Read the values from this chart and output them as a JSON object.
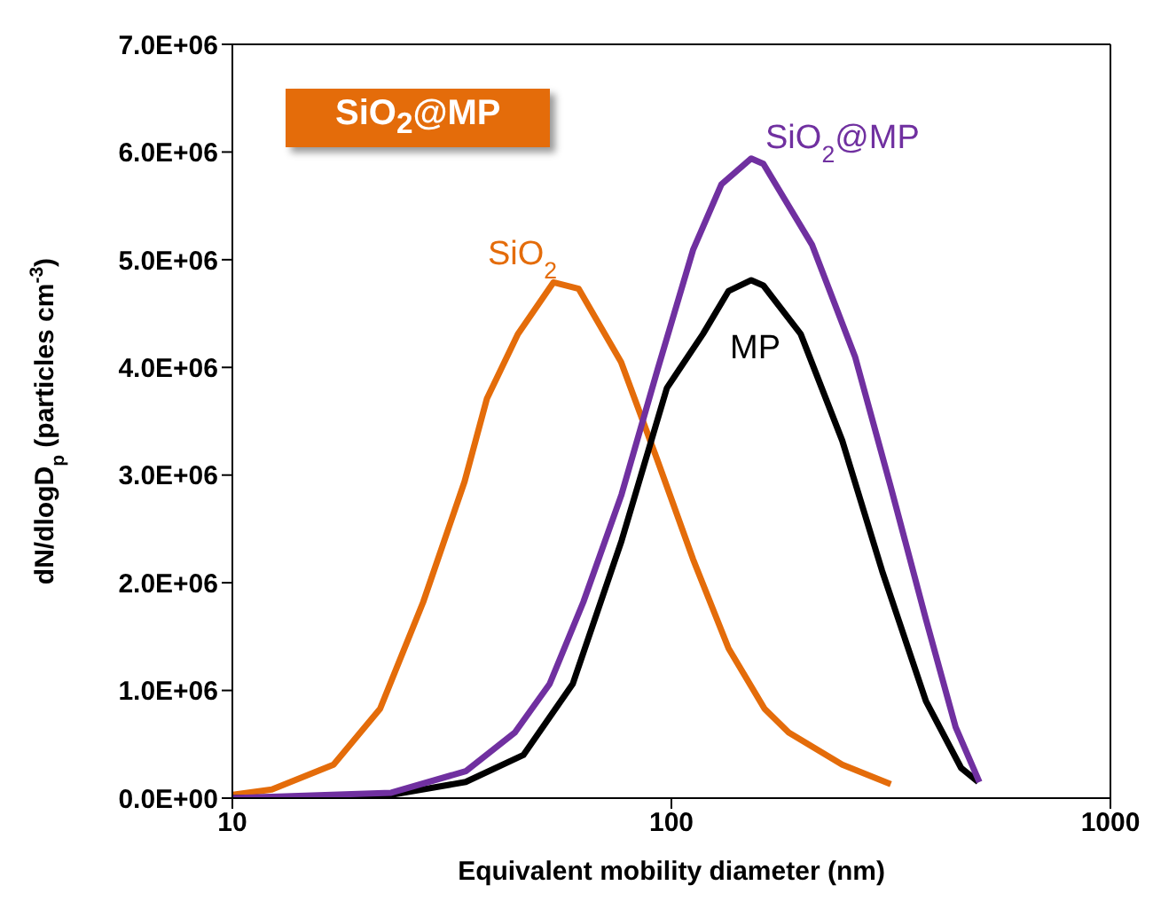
{
  "chart_data": {
    "type": "line",
    "title": "SiO$_{2}$@MP",
    "xlabel": "Equivalent mobility diameter (nm)",
    "ylabel": "dN/dlogD$_{p}$ (particles cm$^{-3}$)",
    "log": "x",
    "marker": "none",
    "line_style": "solid",
    "xlim": [
      10,
      1000
    ],
    "xticks": [
      10,
      100,
      1000
    ],
    "ylim": [
      0,
      7000000
    ],
    "yticks": [
      {
        "value": 0,
        "label": "0.0E+00"
      },
      {
        "value": 1000000,
        "label": "1.0E+06"
      },
      {
        "value": 2000000,
        "label": "2.0E+06"
      },
      {
        "value": 3000000,
        "label": "3.0E+06"
      },
      {
        "value": 4000000,
        "label": "4.0E+06"
      },
      {
        "value": 5000000,
        "label": "5.0E+06"
      },
      {
        "value": 6000000,
        "label": "6.0E+06"
      },
      {
        "value": 7000000,
        "label": "7.0E+06"
      }
    ],
    "series": [
      {
        "name": "SiO$_{2}$",
        "color": "#e46c0a",
        "x": [
          10,
          12.3,
          17,
          21.7,
          27.2,
          33.8,
          38,
          44.7,
          53.9,
          61.5,
          76.8,
          92.7,
          112,
          135,
          163,
          185,
          245,
          316
        ],
        "values": [
          30000,
          80000,
          310000,
          830000,
          1820000,
          2940000,
          3710000,
          4310000,
          4790000,
          4730000,
          4050000,
          3150000,
          2220000,
          1390000,
          830000,
          610000,
          310000,
          130000
        ]
      },
      {
        "name": "MP",
        "color": "#000000",
        "x": [
          10,
          23,
          34,
          46,
          59.6,
          77,
          97.7,
          118,
          135,
          152,
          162,
          197,
          245,
          302,
          380,
          457,
          500
        ],
        "values": [
          0,
          30000,
          150000,
          400000,
          1060000,
          2390000,
          3810000,
          4310000,
          4710000,
          4810000,
          4760000,
          4310000,
          3320000,
          2110000,
          900000,
          280000,
          150000
        ]
      },
      {
        "name": "SiO$_{2}$@MP",
        "color": "#7030a0",
        "x": [
          10,
          23,
          34,
          44,
          52.8,
          63,
          77,
          93,
          112,
          130,
          152,
          162,
          209,
          262,
          316,
          380,
          444,
          503
        ],
        "values": [
          0,
          50000,
          250000,
          610000,
          1060000,
          1820000,
          2820000,
          3980000,
          5090000,
          5700000,
          5940000,
          5890000,
          5140000,
          4100000,
          2890000,
          1660000,
          660000,
          150000
        ]
      }
    ]
  }
}
